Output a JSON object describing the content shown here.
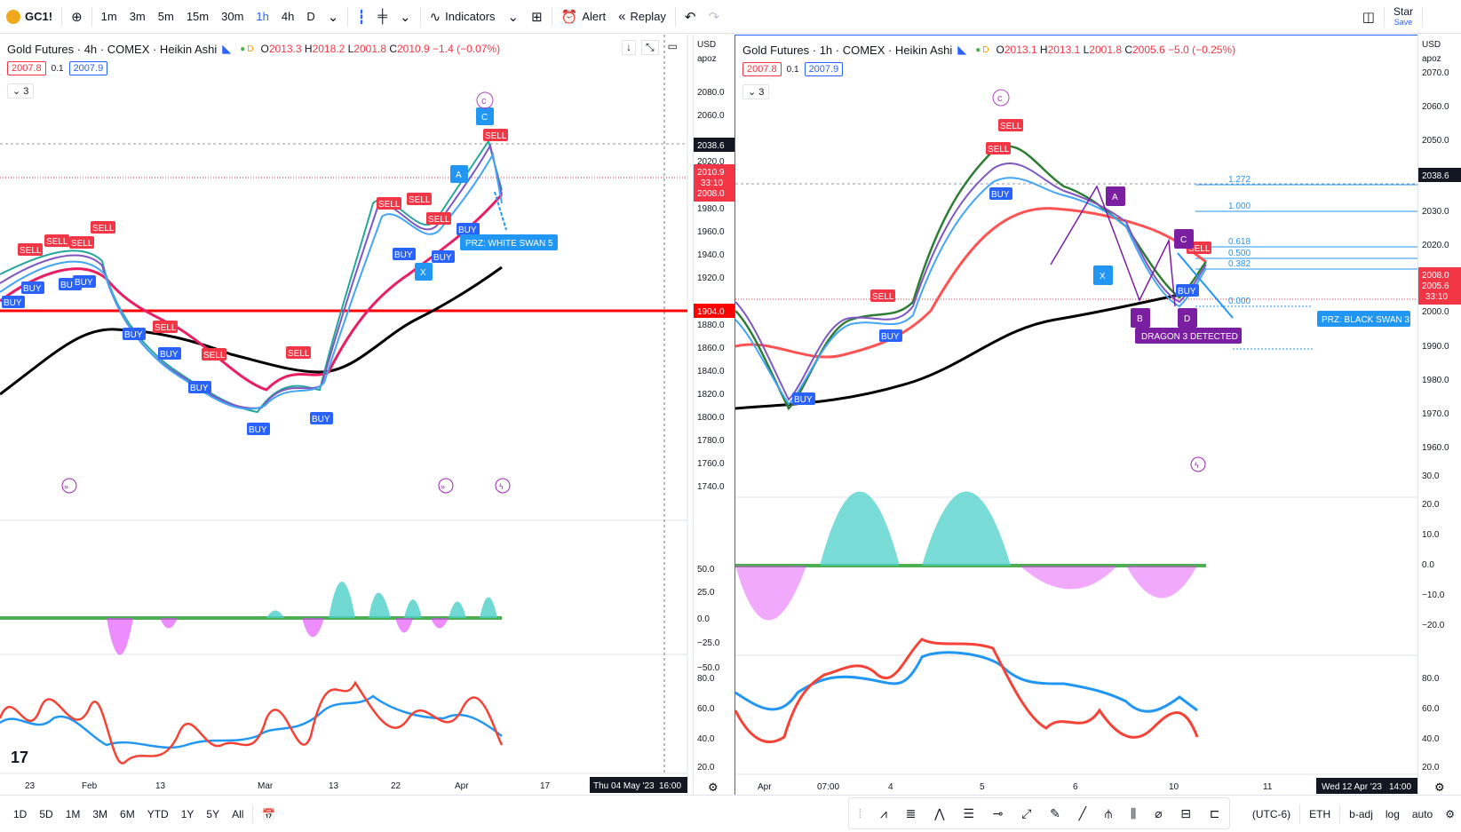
{
  "toolbar": {
    "symbol": "GC1!",
    "intervals": [
      "1m",
      "3m",
      "5m",
      "15m",
      "30m",
      "1h",
      "4h",
      "D"
    ],
    "active_interval": "1h",
    "indicators_label": "Indicators",
    "alert_label": "Alert",
    "replay_label": "Replay",
    "account_label": "Star",
    "save_label": "Save"
  },
  "left_chart": {
    "title": "Gold Futures · 4h · COMEX · Heikin Ashi",
    "ohlc": {
      "o": "2013.3",
      "h": "2018.2",
      "l": "2001.8",
      "c": "2010.9",
      "chg": "−1.4 (−0.07%)"
    },
    "bid": "2007.8",
    "spread": "0.1",
    "ask": "2007.9",
    "collapse": "3",
    "currency": "USD",
    "scale_sub": "apoz",
    "price_ticks": [
      "2080.0",
      "2060.0",
      "2040.0",
      "2020.0",
      "2000.0",
      "1980.0",
      "1960.0",
      "1940.0",
      "1920.0",
      "1900.0",
      "1880.0",
      "1860.0",
      "1840.0",
      "1820.0",
      "1800.0",
      "1780.0",
      "1760.0",
      "1740.0"
    ],
    "price_tag_1": "2038.6",
    "price_tag_2": "2010.9",
    "price_tag_2b": "33:10",
    "price_tag_3": "2008.0",
    "price_tag_4": "1904.0",
    "osc_ticks": [
      "50.0",
      "25.0",
      "0.0",
      "−25.0",
      "−50.0"
    ],
    "rsi_ticks": [
      "80.0",
      "60.0",
      "40.0",
      "20.0"
    ],
    "time_labels": [
      "23",
      "Feb",
      "13",
      "Mar",
      "13",
      "22",
      "Apr",
      "17"
    ],
    "cursor_date": "Thu 04 May '23",
    "cursor_time": "16:00",
    "prz_label": "PRZ: WHITE SWAN 5",
    "signals": {
      "sell": "SELL",
      "buy": "BUY",
      "a": "A",
      "x": "X",
      "c": "C",
      "c_circle": "c"
    }
  },
  "right_chart": {
    "title": "Gold Futures · 1h · COMEX · Heikin Ashi",
    "ohlc": {
      "o": "2013.1",
      "h": "2013.1",
      "l": "2001.8",
      "c": "2005.6",
      "chg": "−5.0 (−0.25%)"
    },
    "bid": "2007.8",
    "spread": "0.1",
    "ask": "2007.9",
    "collapse": "3",
    "currency": "USD",
    "scale_sub": "apoz",
    "price_ticks": [
      "2070.0",
      "2060.0",
      "2050.0",
      "2040.0",
      "2030.0",
      "2020.0",
      "2010.0",
      "2000.0",
      "1990.0",
      "1980.0",
      "1970.0",
      "1960.0"
    ],
    "price_tag_1": "2038.6",
    "price_tag_2": "2008.0",
    "price_tag_3": "2005.6",
    "price_tag_3b": "33:10",
    "osc_ticks": [
      "30.0",
      "20.0",
      "10.0",
      "0.0",
      "−10.0",
      "−20.0"
    ],
    "rsi_ticks": [
      "80.0",
      "60.0",
      "40.0",
      "20.0"
    ],
    "time_labels": [
      "Apr",
      "07:00",
      "4",
      "5",
      "6",
      "10",
      "11"
    ],
    "cursor_date": "Wed 12 Apr '23",
    "cursor_time": "14:00",
    "fib_levels": [
      "1.272",
      "1.000",
      "0.618",
      "0.500",
      "0.382",
      "0.000"
    ],
    "prz_label": "PRZ: BLACK SWAN 3",
    "dragon_label": "DRAGON 3 DETECTED",
    "pattern_points": {
      "a": "A",
      "b": "B",
      "c": "C",
      "d": "D",
      "x": "X"
    },
    "signals": {
      "sell": "SELL",
      "buy": "BUY",
      "c_circle": "c"
    }
  },
  "bottombar": {
    "ranges": [
      "1D",
      "5D",
      "1M",
      "3M",
      "6M",
      "YTD",
      "1Y",
      "5Y",
      "All"
    ],
    "timezone": "(UTC-6)",
    "session": "ETH",
    "adj": "b-adj",
    "log": "log",
    "auto": "auto"
  },
  "colors": {
    "sell": "#f23645",
    "buy": "#2962ff",
    "pattern": "#7b1fa2",
    "prz": "#2196f3",
    "sma": "#000000",
    "ema": "#e91e63",
    "support": "#ff0000"
  }
}
